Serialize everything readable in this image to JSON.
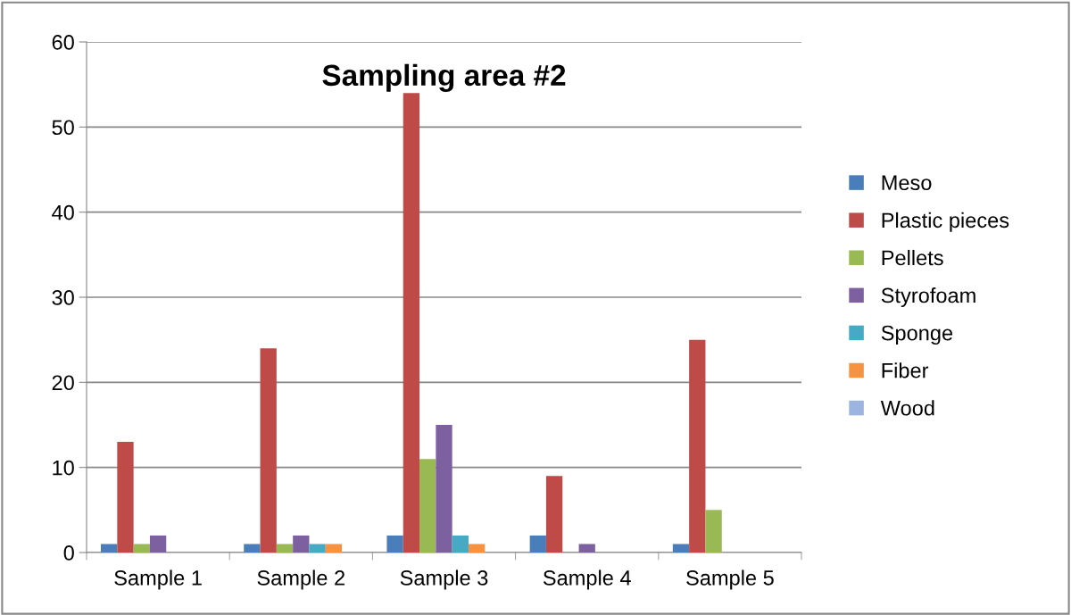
{
  "chart_data": {
    "type": "bar",
    "title": "Sampling area #2",
    "categories": [
      "Sample 1",
      "Sample 2",
      "Sample 3",
      "Sample 4",
      "Sample 5"
    ],
    "series": [
      {
        "name": "Meso",
        "color": "#4a7ebb",
        "values": [
          1,
          1,
          2,
          2,
          1
        ]
      },
      {
        "name": "Plastic pieces",
        "color": "#be4b48",
        "values": [
          13,
          24,
          54,
          9,
          25
        ]
      },
      {
        "name": "Pellets",
        "color": "#98b954",
        "values": [
          1,
          1,
          11,
          0,
          5
        ]
      },
      {
        "name": "Styrofoam",
        "color": "#7d60a0",
        "values": [
          2,
          2,
          15,
          1,
          0
        ]
      },
      {
        "name": "Sponge",
        "color": "#46aac5",
        "values": [
          0,
          1,
          2,
          0,
          0
        ]
      },
      {
        "name": "Fiber",
        "color": "#f69240",
        "values": [
          0,
          1,
          1,
          0,
          0
        ]
      },
      {
        "name": "Wood",
        "color": "#9cb4e0",
        "values": [
          0,
          0,
          0,
          0,
          0
        ]
      }
    ],
    "ylim": [
      0,
      60
    ],
    "yticks": [
      0,
      10,
      20,
      30,
      40,
      50,
      60
    ],
    "grid": "y",
    "legend": "right"
  }
}
